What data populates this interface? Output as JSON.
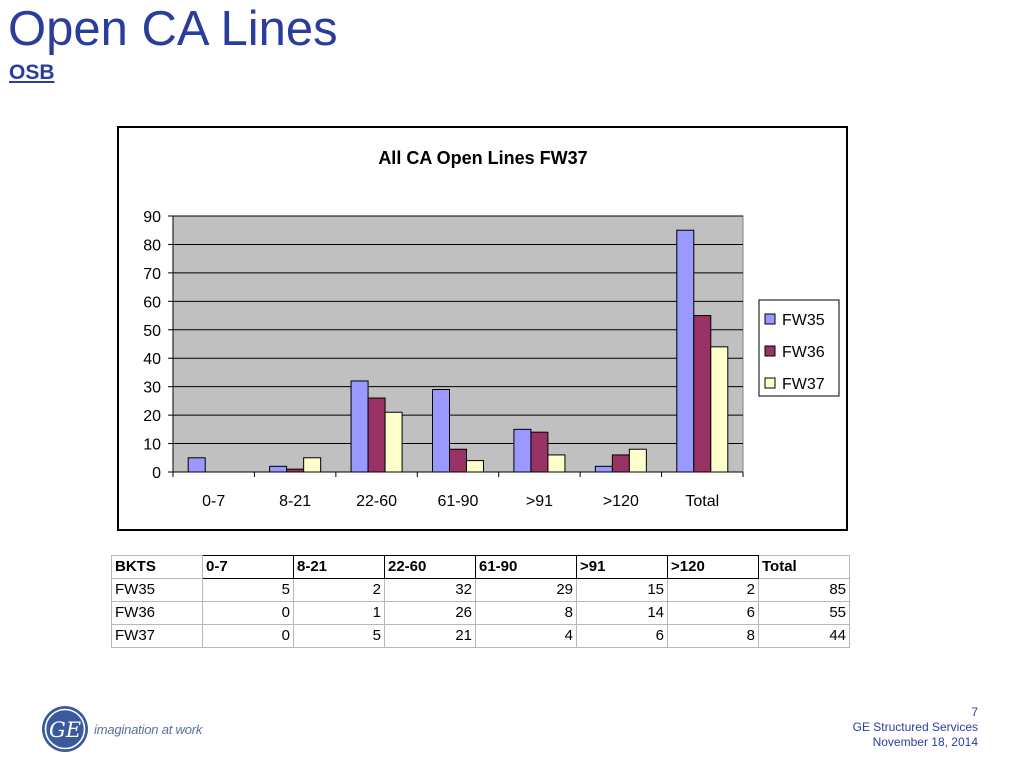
{
  "slide": {
    "title": "Open CA Lines",
    "subtitle": "OSB"
  },
  "chart_data": {
    "type": "bar",
    "title": "All CA Open Lines FW37",
    "categories": [
      "0-7",
      "8-21",
      "22-60",
      "61-90",
      ">91",
      ">120",
      "Total"
    ],
    "series": [
      {
        "name": "FW35",
        "values": [
          5,
          2,
          32,
          29,
          15,
          2,
          85
        ],
        "color": "#9999ff"
      },
      {
        "name": "FW36",
        "values": [
          0,
          1,
          26,
          8,
          14,
          6,
          55
        ],
        "color": "#993366"
      },
      {
        "name": "FW37",
        "values": [
          0,
          5,
          21,
          4,
          6,
          8,
          44
        ],
        "color": "#ffffcc"
      }
    ],
    "ylim": [
      0,
      90
    ],
    "yticks": [
      0,
      10,
      20,
      30,
      40,
      50,
      60,
      70,
      80,
      90
    ],
    "xlabel": "",
    "ylabel": "",
    "grid": true,
    "plot_background": "#c0c0c0",
    "legend_position": "right"
  },
  "table": {
    "header": [
      "BKTS",
      "0-7",
      "8-21",
      "22-60",
      "61-90",
      ">91",
      ">120",
      "Total"
    ],
    "rows": [
      {
        "label": "FW35",
        "values": [
          "5",
          "2",
          "32",
          "29",
          "15",
          "2",
          "85"
        ]
      },
      {
        "label": "FW36",
        "values": [
          "0",
          "1",
          "26",
          "8",
          "14",
          "6",
          "55"
        ]
      },
      {
        "label": "FW37",
        "values": [
          "0",
          "5",
          "21",
          "4",
          "6",
          "8",
          "44"
        ]
      }
    ]
  },
  "footer": {
    "logo_icon": "ge-logo-icon",
    "tagline": "imagination at work",
    "page_number": "7",
    "company": "GE Structured Services",
    "date": "November 18, 2014"
  },
  "colors": {
    "title": "#2a3d9c",
    "logo": "#3b5a9d"
  }
}
